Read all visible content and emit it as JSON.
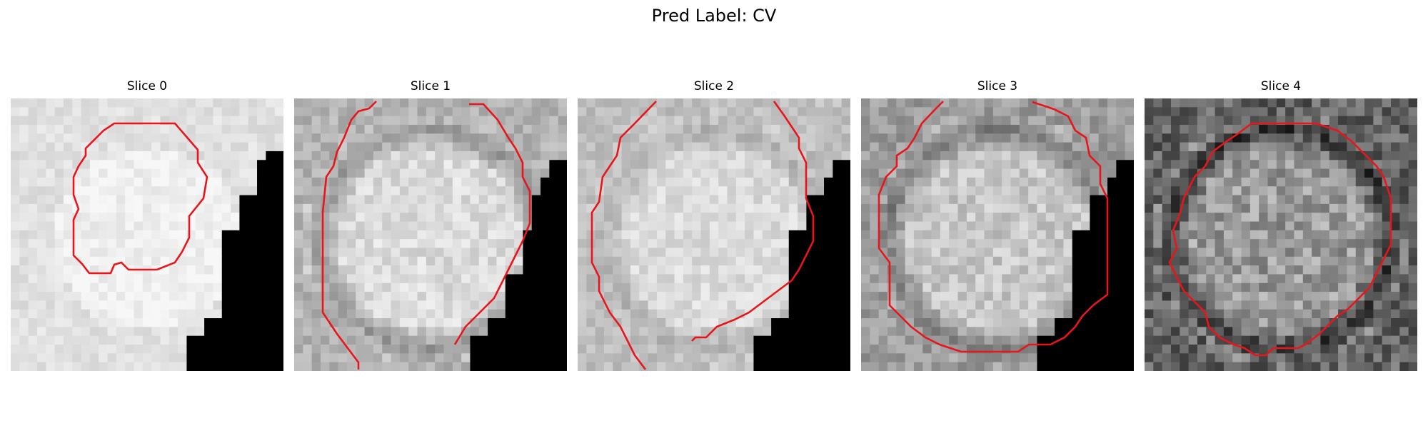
{
  "figure": {
    "title": "Pred Label: CV"
  },
  "panels": [
    {
      "title": "Slice 0",
      "base_gray": 0.88,
      "ring": 0.0,
      "noise": 0.05,
      "mask": "corner-mild",
      "seed": 11
    },
    {
      "title": "Slice 1",
      "base_gray": 0.8,
      "ring": 0.2,
      "noise": 0.08,
      "mask": "corner-steep",
      "seed": 23
    },
    {
      "title": "Slice 2",
      "base_gray": 0.8,
      "ring": 0.1,
      "noise": 0.07,
      "mask": "corner-steep2",
      "seed": 37
    },
    {
      "title": "Slice 3",
      "base_gray": 0.72,
      "ring": 0.22,
      "noise": 0.1,
      "mask": "corner-steep3",
      "seed": 41
    },
    {
      "title": "Slice 4",
      "base_gray": 0.55,
      "ring": 0.32,
      "noise": 0.16,
      "mask": "none",
      "seed": 59
    }
  ],
  "colors": {
    "contour": "#e8161b",
    "mask": "#000000"
  }
}
